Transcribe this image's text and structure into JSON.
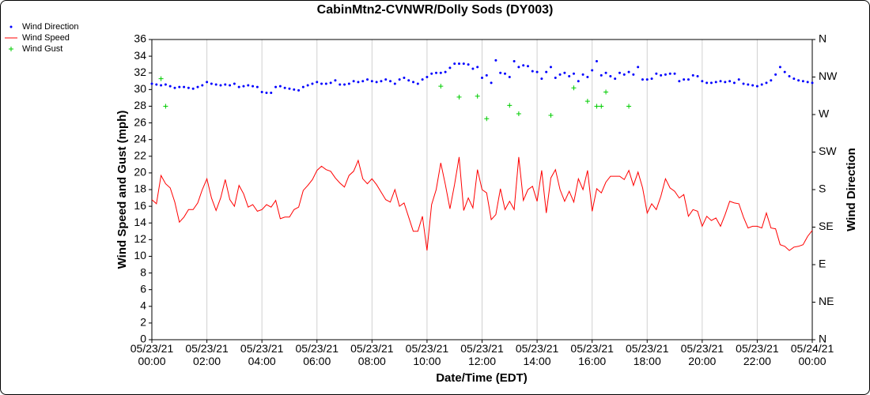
{
  "chart_data": {
    "type": "line",
    "title": "CabinMtn2-CVNWR/Dolly Sods (DY003)",
    "xlabel": "Date/Time (EDT)",
    "ylabel": "Wind Speed and Gust (mph)",
    "y2label": "Wind Direction",
    "legend": "top-left",
    "grid": "x",
    "xlim": [
      "05/23/21 00:00",
      "05/24/21 00:00"
    ],
    "xticks": [
      "05/23/21\n00:00",
      "05/23/21\n02:00",
      "05/23/21\n04:00",
      "05/23/21\n06:00",
      "05/23/21\n08:00",
      "05/23/21\n10:00",
      "05/23/21\n12:00",
      "05/23/21\n14:00",
      "05/23/21\n16:00",
      "05/23/21\n18:00",
      "05/23/21\n20:00",
      "05/23/21\n22:00",
      "05/24/21\n00:00"
    ],
    "ylim": [
      0,
      36
    ],
    "yticks": [
      0,
      2,
      4,
      6,
      8,
      10,
      12,
      14,
      16,
      18,
      20,
      22,
      24,
      26,
      28,
      30,
      32,
      34,
      36
    ],
    "y2lim": [
      0,
      360
    ],
    "y2ticks": [
      {
        "value": 0,
        "label": "N"
      },
      {
        "value": 45,
        "label": "NE"
      },
      {
        "value": 90,
        "label": "E"
      },
      {
        "value": 135,
        "label": "SE"
      },
      {
        "value": 180,
        "label": "S"
      },
      {
        "value": 225,
        "label": "SW"
      },
      {
        "value": 270,
        "label": "W"
      },
      {
        "value": 315,
        "label": "NW"
      },
      {
        "value": 360,
        "label": "N"
      }
    ],
    "x": [
      "05/23/21 00:00",
      "05/23/21 00:10",
      "05/23/21 00:20",
      "05/23/21 00:30",
      "05/23/21 00:40",
      "05/23/21 00:50",
      "05/23/21 01:00",
      "05/23/21 01:10",
      "05/23/21 01:20",
      "05/23/21 01:30",
      "05/23/21 01:40",
      "05/23/21 01:50",
      "05/23/21 02:00",
      "05/23/21 02:10",
      "05/23/21 02:20",
      "05/23/21 02:30",
      "05/23/21 02:40",
      "05/23/21 02:50",
      "05/23/21 03:00",
      "05/23/21 03:10",
      "05/23/21 03:20",
      "05/23/21 03:30",
      "05/23/21 03:40",
      "05/23/21 03:50",
      "05/23/21 04:00",
      "05/23/21 04:10",
      "05/23/21 04:20",
      "05/23/21 04:30",
      "05/23/21 04:40",
      "05/23/21 04:50",
      "05/23/21 05:00",
      "05/23/21 05:10",
      "05/23/21 05:20",
      "05/23/21 05:30",
      "05/23/21 05:40",
      "05/23/21 05:50",
      "05/23/21 06:00",
      "05/23/21 06:10",
      "05/23/21 06:20",
      "05/23/21 06:30",
      "05/23/21 06:40",
      "05/23/21 06:50",
      "05/23/21 07:00",
      "05/23/21 07:10",
      "05/23/21 07:20",
      "05/23/21 07:30",
      "05/23/21 07:40",
      "05/23/21 07:50",
      "05/23/21 08:00",
      "05/23/21 08:10",
      "05/23/21 08:20",
      "05/23/21 08:30",
      "05/23/21 08:40",
      "05/23/21 08:50",
      "05/23/21 09:00",
      "05/23/21 09:10",
      "05/23/21 09:20",
      "05/23/21 09:30",
      "05/23/21 09:40",
      "05/23/21 09:50",
      "05/23/21 10:00",
      "05/23/21 10:10",
      "05/23/21 10:20",
      "05/23/21 10:30",
      "05/23/21 10:40",
      "05/23/21 10:50",
      "05/23/21 11:00",
      "05/23/21 11:10",
      "05/23/21 11:20",
      "05/23/21 11:30",
      "05/23/21 11:40",
      "05/23/21 11:50",
      "05/23/21 12:00",
      "05/23/21 12:10",
      "05/23/21 12:20",
      "05/23/21 12:30",
      "05/23/21 12:40",
      "05/23/21 12:50",
      "05/23/21 13:00",
      "05/23/21 13:10",
      "05/23/21 13:20",
      "05/23/21 13:30",
      "05/23/21 13:40",
      "05/23/21 13:50",
      "05/23/21 14:00",
      "05/23/21 14:10",
      "05/23/21 14:20",
      "05/23/21 14:30",
      "05/23/21 14:40",
      "05/23/21 14:50",
      "05/23/21 15:00",
      "05/23/21 15:10",
      "05/23/21 15:20",
      "05/23/21 15:30",
      "05/23/21 15:40",
      "05/23/21 15:50",
      "05/23/21 16:00",
      "05/23/21 16:10",
      "05/23/21 16:20",
      "05/23/21 16:30",
      "05/23/21 16:40",
      "05/23/21 16:50",
      "05/23/21 17:00",
      "05/23/21 17:10",
      "05/23/21 17:20",
      "05/23/21 17:30",
      "05/23/21 17:40",
      "05/23/21 17:50",
      "05/23/21 18:00",
      "05/23/21 18:10",
      "05/23/21 18:20",
      "05/23/21 18:30",
      "05/23/21 18:40",
      "05/23/21 18:50",
      "05/23/21 19:00",
      "05/23/21 19:10",
      "05/23/21 19:20",
      "05/23/21 19:30",
      "05/23/21 19:40",
      "05/23/21 19:50",
      "05/23/21 20:00",
      "05/23/21 20:10",
      "05/23/21 20:20",
      "05/23/21 20:30",
      "05/23/21 20:40",
      "05/23/21 20:50",
      "05/23/21 21:00",
      "05/23/21 21:10",
      "05/23/21 21:20",
      "05/23/21 21:30",
      "05/23/21 21:40",
      "05/23/21 21:50",
      "05/23/21 22:00",
      "05/23/21 22:10",
      "05/23/21 22:20",
      "05/23/21 22:30",
      "05/23/21 22:40",
      "05/23/21 22:50",
      "05/23/21 23:00",
      "05/23/21 23:10",
      "05/23/21 23:20",
      "05/23/21 23:30",
      "05/23/21 23:40",
      "05/23/21 23:50",
      "05/24/21 00:00"
    ],
    "series": [
      {
        "name": "Wind Direction",
        "type": "scatter",
        "marker": "dot",
        "axis": "y2",
        "color": "#0000ff",
        "values": [
          307,
          306,
          305,
          306,
          304,
          302,
          303,
          303,
          302,
          301,
          303,
          305,
          309,
          307,
          306,
          305,
          306,
          305,
          307,
          303,
          304,
          305,
          304,
          303,
          297,
          296,
          296,
          303,
          304,
          302,
          301,
          300,
          299,
          303,
          305,
          307,
          309,
          307,
          307,
          308,
          311,
          306,
          306,
          307,
          310,
          309,
          310,
          312,
          310,
          309,
          310,
          312,
          310,
          307,
          312,
          314,
          311,
          309,
          307,
          312,
          315,
          319,
          320,
          320,
          321,
          326,
          331,
          331,
          331,
          330,
          325,
          327,
          314,
          317,
          308,
          335,
          320,
          319,
          315,
          334,
          327,
          329,
          328,
          322,
          321,
          313,
          321,
          327,
          314,
          318,
          320,
          316,
          319,
          310,
          318,
          315,
          323,
          334,
          317,
          320,
          316,
          313,
          320,
          318,
          321,
          318,
          327,
          312,
          312,
          313,
          319,
          317,
          318,
          319,
          319,
          310,
          312,
          312,
          317,
          316,
          310,
          308,
          308,
          309,
          310,
          309,
          310,
          308,
          312,
          307,
          306,
          305,
          304,
          306,
          308,
          311,
          318,
          327,
          321,
          316,
          313,
          311,
          310,
          309,
          308
        ]
      },
      {
        "name": "Wind Speed",
        "type": "line",
        "color": "#ff0000",
        "values": [
          16.8,
          16.3,
          19.7,
          18.7,
          18.2,
          16.5,
          14.1,
          14.7,
          15.6,
          15.6,
          16.4,
          18.0,
          19.3,
          17.0,
          15.5,
          17.0,
          19.2,
          16.8,
          16.0,
          18.5,
          17.5,
          15.9,
          16.2,
          15.4,
          15.6,
          16.2,
          15.9,
          16.7,
          14.5,
          14.7,
          14.7,
          15.6,
          15.9,
          17.9,
          18.5,
          19.2,
          20.3,
          20.8,
          20.4,
          20.2,
          19.4,
          18.8,
          18.3,
          19.7,
          20.2,
          21.5,
          19.3,
          18.7,
          19.3,
          18.6,
          17.7,
          16.8,
          16.5,
          18.0,
          16.0,
          16.4,
          14.7,
          13.0,
          13.0,
          14.8,
          10.7,
          16.2,
          18.0,
          21.2,
          18.6,
          15.7,
          18.6,
          21.9,
          15.5,
          17.0,
          15.8,
          20.4,
          18.0,
          17.6,
          14.4,
          15.0,
          18.1,
          15.6,
          16.6,
          15.6,
          21.9,
          16.7,
          18.0,
          18.4,
          16.6,
          20.3,
          15.2,
          19.4,
          20.4,
          18.0,
          16.6,
          17.8,
          16.5,
          19.3,
          18.0,
          20.3,
          15.4,
          18.1,
          17.6,
          18.9,
          19.6,
          19.6,
          19.6,
          19.2,
          20.3,
          18.5,
          20.1,
          18.2,
          15.2,
          16.3,
          15.6,
          17.2,
          19.3,
          18.2,
          17.8,
          17.0,
          17.4,
          14.8,
          15.6,
          15.4,
          13.6,
          14.8,
          14.3,
          14.6,
          13.6,
          15.0,
          16.6,
          16.4,
          16.3,
          14.7,
          13.4,
          13.6,
          13.6,
          13.4,
          15.2,
          13.4,
          13.3,
          11.4,
          11.2,
          10.7,
          11.1,
          11.2,
          11.4,
          12.4,
          13.1
        ]
      },
      {
        "name": "Wind Gust",
        "type": "scatter",
        "marker": "plus",
        "color": "#00cc00",
        "x": [
          "05/23/21 00:20",
          "05/23/21 00:30",
          "05/23/21 10:30",
          "05/23/21 11:10",
          "05/23/21 11:50",
          "05/23/21 12:10",
          "05/23/21 13:00",
          "05/23/21 13:20",
          "05/23/21 14:30",
          "05/23/21 15:20",
          "05/23/21 15:50",
          "05/23/21 16:10",
          "05/23/21 16:20",
          "05/23/21 16:30",
          "05/23/21 17:20"
        ],
        "values": [
          31.3,
          28.0,
          30.4,
          29.1,
          29.2,
          26.5,
          28.1,
          27.1,
          26.9,
          30.2,
          28.6,
          28.0,
          28.0,
          29.7,
          28.0
        ]
      }
    ]
  }
}
